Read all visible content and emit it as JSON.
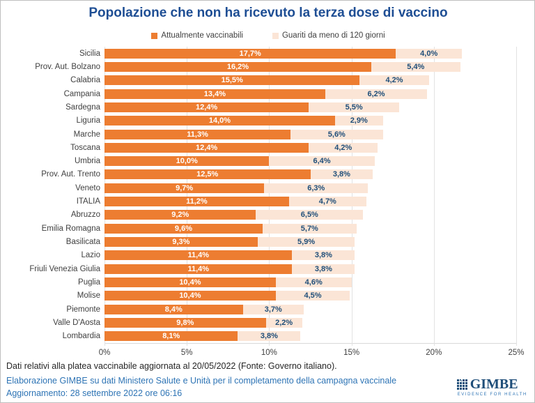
{
  "title": "Popolazione che non ha ricevuto la terza dose di vaccino",
  "legend": [
    {
      "label": "Attualmente vaccinabili",
      "color": "#ED7D31"
    },
    {
      "label": "Guariti da meno di 120 giorni",
      "color": "#FBE5D6"
    }
  ],
  "chart_data": {
    "type": "bar",
    "orientation": "horizontal",
    "stacked": true,
    "title": "Popolazione che non ha ricevuto la terza dose di vaccino",
    "categories": [
      "Sicilia",
      "Prov. Aut. Bolzano",
      "Calabria",
      "Campania",
      "Sardegna",
      "Liguria",
      "Marche",
      "Toscana",
      "Umbria",
      "Prov. Aut. Trento",
      "Veneto",
      "ITALIA",
      "Abruzzo",
      "Emilia Romagna",
      "Basilicata",
      "Lazio",
      "Friuli Venezia Giulia",
      "Puglia",
      "Molise",
      "Piemonte",
      "Valle D'Aosta",
      "Lombardia"
    ],
    "series": [
      {
        "name": "Attualmente vaccinabili",
        "color": "#ED7D31",
        "label_color": "#FFFFFF",
        "values": [
          17.7,
          16.2,
          15.5,
          13.4,
          12.4,
          14.0,
          11.3,
          12.4,
          10.0,
          12.5,
          9.7,
          11.2,
          9.2,
          9.6,
          9.3,
          11.4,
          11.4,
          10.4,
          10.4,
          8.4,
          9.8,
          8.1
        ],
        "labels": [
          "17,7%",
          "16,2%",
          "15,5%",
          "13,4%",
          "12,4%",
          "14,0%",
          "11,3%",
          "12,4%",
          "10,0%",
          "12,5%",
          "9,7%",
          "11,2%",
          "9,2%",
          "9,6%",
          "9,3%",
          "11,4%",
          "11,4%",
          "10,4%",
          "10,4%",
          "8,4%",
          "9,8%",
          "8,1%"
        ]
      },
      {
        "name": "Guariti da meno di 120 giorni",
        "color": "#FBE5D6",
        "label_color": "#1F4E79",
        "values": [
          4.0,
          5.4,
          4.2,
          6.2,
          5.5,
          2.9,
          5.6,
          4.2,
          6.4,
          3.8,
          6.3,
          4.7,
          6.5,
          5.7,
          5.9,
          3.8,
          3.8,
          4.6,
          4.5,
          3.7,
          2.2,
          3.8
        ],
        "labels": [
          "4,0%",
          "5,4%",
          "4,2%",
          "6,2%",
          "5,5%",
          "2,9%",
          "5,6%",
          "4,2%",
          "6,4%",
          "3,8%",
          "6,3%",
          "4,7%",
          "6,5%",
          "5,7%",
          "5,9%",
          "3,8%",
          "3,8%",
          "4,6%",
          "4,5%",
          "3,7%",
          "2,2%",
          "3,8%"
        ]
      }
    ],
    "xlim": [
      0,
      25
    ],
    "x_ticks": [
      {
        "value": 0,
        "label": "0%"
      },
      {
        "value": 5,
        "label": "5%"
      },
      {
        "value": 10,
        "label": "10%"
      },
      {
        "value": 15,
        "label": "15%"
      },
      {
        "value": 20,
        "label": "20%"
      },
      {
        "value": 25,
        "label": "25%"
      }
    ],
    "grid": true,
    "legend_position": "top"
  },
  "footer": {
    "line1": "Dati relativi alla platea vaccinabile aggiornata al 20/05/2022 (Fonte: Governo italiano).",
    "line2": "Elaborazione GIMBE su dati Ministero Salute e Unità per il completamento della campagna vaccinale",
    "line3": "Aggiornamento: 28 settembre 2022 ore 06:16"
  },
  "logo": {
    "name": "GIMBE",
    "tagline": "EVIDENCE FOR HEALTH"
  },
  "colors": {
    "title": "#1E4E94",
    "series1": "#ED7D31",
    "series2": "#FBE5D6",
    "value_label_on_orange": "#FFFFFF",
    "value_label_on_light": "#1F4E79",
    "gridline": "#E2E2E2",
    "category_label": "#404040",
    "footer_blue": "#2E74B5",
    "footer_dark": "#262626"
  }
}
